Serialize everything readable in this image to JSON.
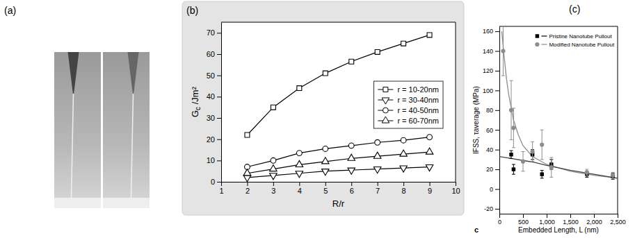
{
  "chart_data": [
    {
      "type": "image",
      "panel_label": "(a)"
    },
    {
      "type": "line",
      "panel_label": "(b)",
      "xlabel": "R/r",
      "ylabel": "Gc /Jm²",
      "x": [
        2,
        3,
        4,
        5,
        6,
        7,
        8,
        9
      ],
      "xlim": [
        1,
        10
      ],
      "xticks": [
        1,
        2,
        3,
        4,
        5,
        6,
        7,
        8,
        9,
        10
      ],
      "ylim": [
        0,
        75
      ],
      "yticks": [
        0,
        10,
        20,
        30,
        40,
        50,
        60,
        70
      ],
      "grid": false,
      "legend": "center right",
      "series": [
        {
          "name": "r = 10-20nm",
          "color": "#000000",
          "marker": "square",
          "values": [
            22,
            35,
            44,
            51,
            56.5,
            61,
            65,
            69
          ]
        },
        {
          "name": "r = 30-40nm",
          "color": "#000000",
          "marker": "triangle-down",
          "values": [
            2,
            3,
            4,
            5,
            5.5,
            6,
            6.5,
            7
          ]
        },
        {
          "name": "r = 40-50nm",
          "color": "#000000",
          "marker": "circle",
          "values": [
            7,
            10,
            13.5,
            15.5,
            17,
            18.5,
            19.5,
            21
          ]
        },
        {
          "name": "r = 60-70nm",
          "color": "#000000",
          "marker": "triangle-up",
          "values": [
            4,
            6,
            8,
            9.5,
            11,
            12,
            13,
            14
          ]
        }
      ]
    },
    {
      "type": "scatter",
      "panel_label": "(c)",
      "annotation": "c",
      "xlabel": "Embedded Length, L (nm)",
      "ylabel": "IFSS, τaverage (MPa)",
      "xlim": [
        0,
        2500
      ],
      "xticks": [
        0,
        500,
        {
          "value": 1000,
          "label": "1,000"
        },
        {
          "value": 1500,
          "label": "1,500"
        },
        {
          "value": 2000,
          "label": "2,000"
        },
        {
          "value": 2500,
          "label": "2,500"
        }
      ],
      "ylim": [
        -25,
        165
      ],
      "yticks": [
        -20,
        0,
        20,
        40,
        60,
        80,
        100,
        120,
        140,
        160
      ],
      "grid": false,
      "legend": "upper right",
      "series": [
        {
          "name": "Pristine Nanotube Pullout",
          "type": "scatter",
          "color": "#000000",
          "marker": "square",
          "x": [
            250,
            300,
            700,
            900,
            1100,
            1850,
            2400
          ],
          "values": [
            35,
            20,
            35,
            15,
            25,
            15,
            13
          ],
          "errors": [
            4,
            5,
            5,
            4,
            5,
            3,
            3
          ]
        },
        {
          "name": "Modified Nanotube Pullout",
          "type": "scatter",
          "color": "#8c8c8c",
          "marker": "circle",
          "x": [
            80,
            250,
            300,
            500,
            700,
            900,
            1100,
            1850,
            2400
          ],
          "values": [
            140,
            80,
            62,
            28,
            38,
            45,
            22,
            17,
            14
          ],
          "errors": [
            25,
            30,
            20,
            10,
            10,
            15,
            10,
            3,
            3
          ]
        },
        {
          "type": "line",
          "color": "#8c8c8c",
          "x": [
            50,
            100,
            150,
            200,
            300,
            400,
            500,
            700,
            1000,
            1500,
            2000,
            2500
          ],
          "values": [
            160,
            135,
            112,
            95,
            70,
            55,
            44,
            33,
            25,
            18,
            14,
            11
          ]
        },
        {
          "type": "line",
          "color": "#444444",
          "x": [
            0,
            250,
            500,
            750,
            1000,
            1500,
            2000,
            2500
          ],
          "values": [
            33,
            31,
            29,
            27,
            24,
            19,
            15,
            11
          ]
        }
      ]
    }
  ]
}
